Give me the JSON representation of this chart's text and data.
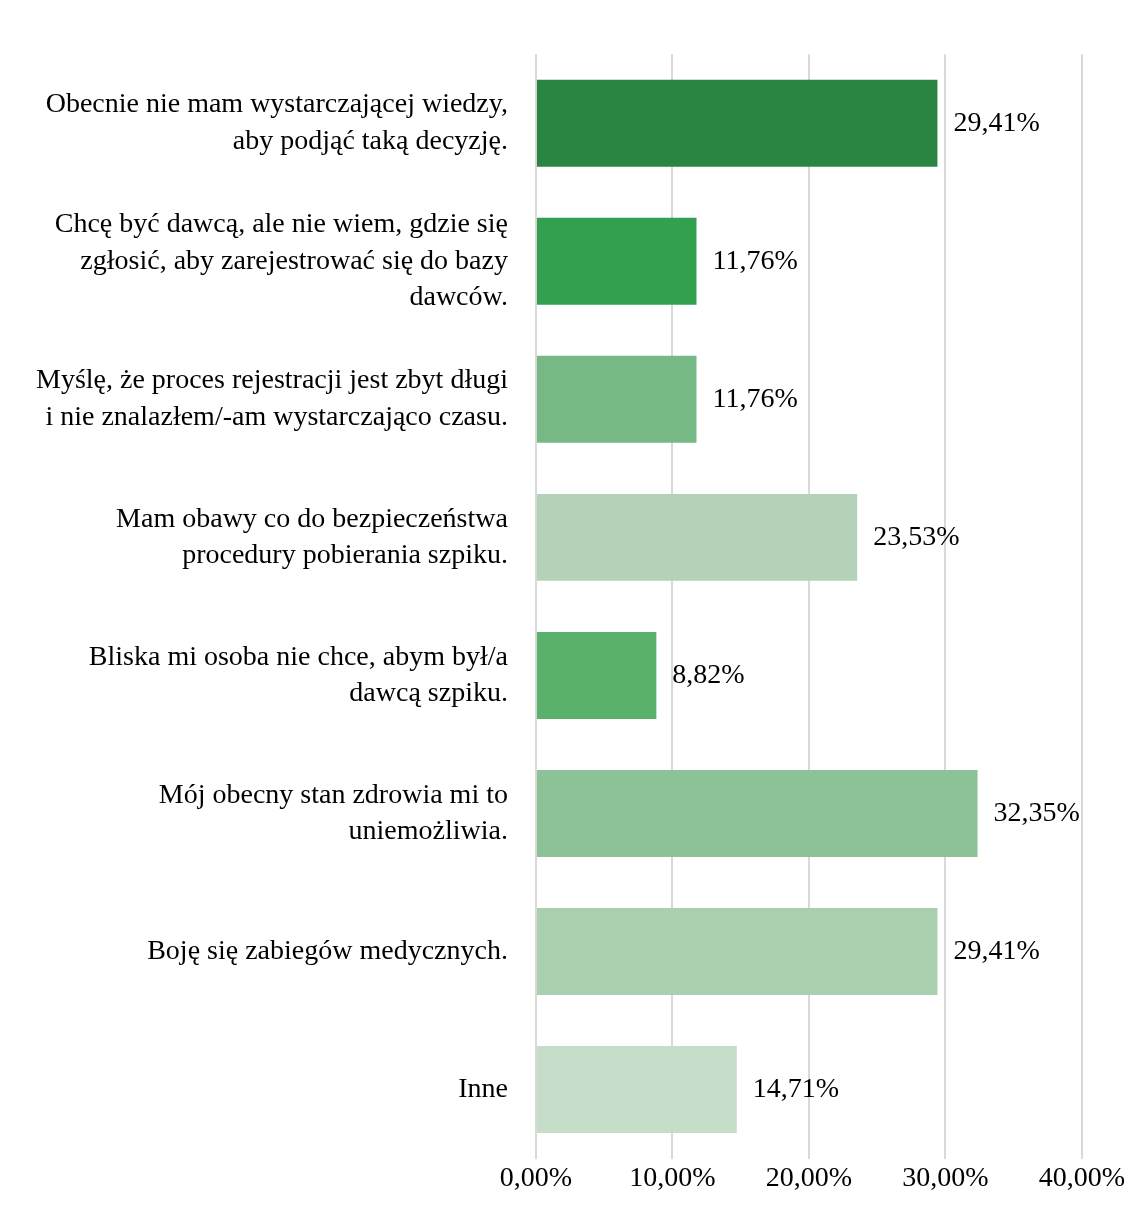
{
  "chart_data": {
    "type": "bar",
    "orientation": "horizontal",
    "categories": [
      "Obecnie nie mam wystarczającej wiedzy, aby podjąć taką decyzję.",
      "Chcę być dawcą, ale nie wiem, gdzie się zgłosić, aby zarejestrować się do bazy dawców.",
      "Myślę, że proces rejestracji jest zbyt długi i nie znalazłem/-am wystarczająco czasu.",
      "Mam obawy co do bezpieczeństwa procedury pobierania szpiku.",
      "Bliska mi osoba nie chce, abym był/a dawcą szpiku.",
      "Mój obecny stan zdrowia mi to uniemożliwia.",
      "Boję się zabiegów medycznych.",
      "Inne"
    ],
    "values": [
      29.41,
      11.76,
      11.76,
      23.53,
      8.82,
      32.35,
      29.41,
      14.71
    ],
    "value_labels": [
      "29,41%",
      "11,76%",
      "11,76%",
      "23,53%",
      "8,82%",
      "32,35%",
      "29,41%",
      "14,71%"
    ],
    "colors": [
      "#2a8543",
      "#32a04f",
      "#76b984",
      "#b3d2b8",
      "#5ab16b",
      "#8dc196",
      "#a9cfb0",
      "#c5ddc9"
    ],
    "xlim": [
      0,
      40
    ],
    "xticks": [
      {
        "value": 0,
        "label": "0,00%"
      },
      {
        "value": 10,
        "label": "10,00%"
      },
      {
        "value": 20,
        "label": "20,00%"
      },
      {
        "value": 30,
        "label": "30,00%"
      },
      {
        "value": 40,
        "label": "40,00%"
      }
    ],
    "grid": "x",
    "legend": false
  }
}
